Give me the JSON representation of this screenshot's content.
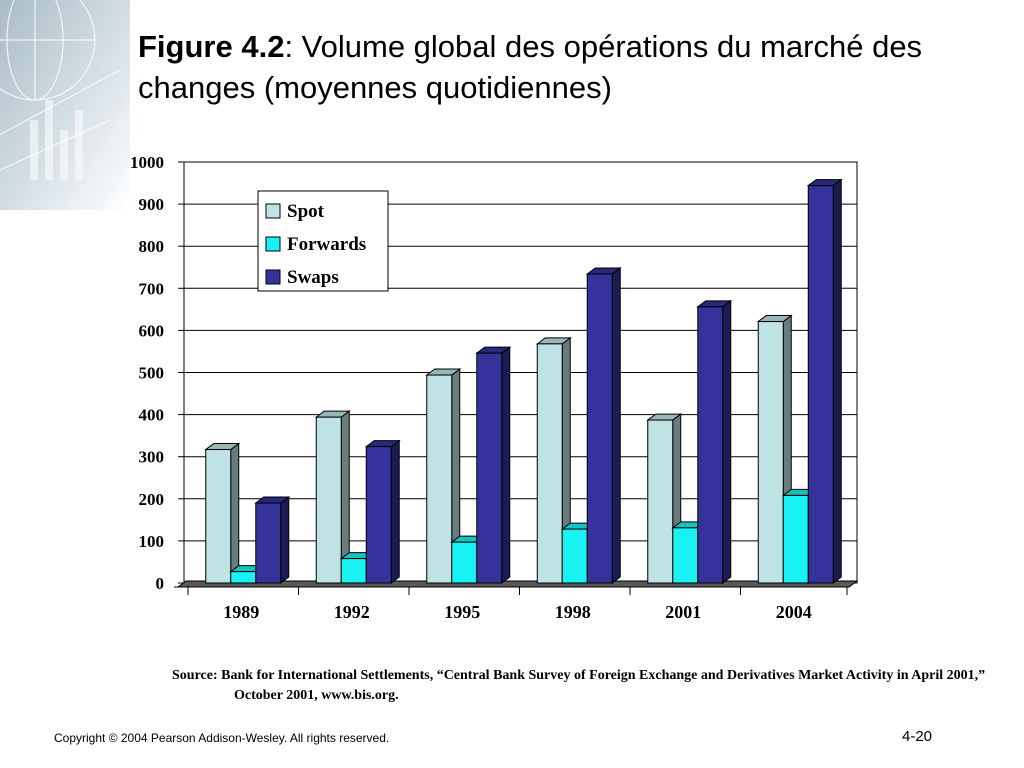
{
  "slide": {
    "title_bold": "Figure 4.2",
    "title_rest": ": Volume global des opérations du marché des changes (moyennes quotidiennes)",
    "source": "Source: Bank for International Settlements, “Central Bank Survey of Foreign Exchange and Derivatives Market Activity in April 2001,” October 2001, www.bis.org.",
    "copyright": "Copyright © 2004 Pearson Addison-Wesley. All rights reserved.",
    "page_number": "4-20"
  },
  "chart_data": {
    "type": "bar",
    "title": "",
    "xlabel": "",
    "ylabel": "",
    "categories": [
      "1989",
      "1992",
      "1995",
      "1998",
      "2001",
      "2004"
    ],
    "series": [
      {
        "name": "Spot",
        "values": [
          317,
          394,
          494,
          568,
          387,
          621
        ],
        "color": "#bfe3e5"
      },
      {
        "name": "Forwards",
        "values": [
          27,
          58,
          97,
          128,
          131,
          208
        ],
        "color": "#19f2f2"
      },
      {
        "name": "Swaps",
        "values": [
          190,
          324,
          546,
          734,
          656,
          944
        ],
        "color": "#33339b"
      }
    ],
    "ylim": [
      0,
      1000
    ],
    "yticks": [
      "0",
      "100",
      "200",
      "300",
      "400",
      "500",
      "600",
      "700",
      "800",
      "900",
      "1000"
    ],
    "grid": true,
    "legend_position": "top-left",
    "style": "3d-bar"
  }
}
